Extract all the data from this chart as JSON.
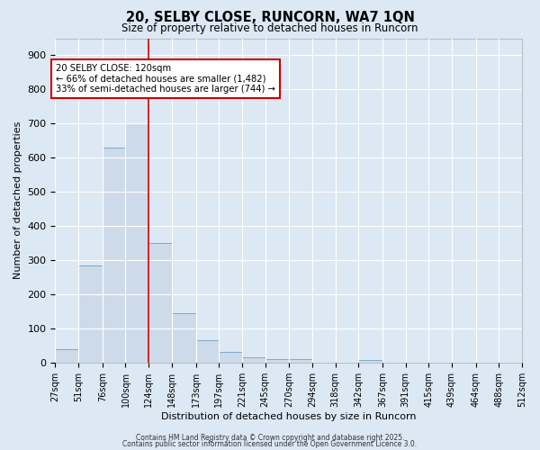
{
  "title": "20, SELBY CLOSE, RUNCORN, WA7 1QN",
  "subtitle": "Size of property relative to detached houses in Runcorn",
  "xlabel": "Distribution of detached houses by size in Runcorn",
  "ylabel": "Number of detached properties",
  "bar_labels": [
    "27sqm",
    "51sqm",
    "76sqm",
    "100sqm",
    "124sqm",
    "148sqm",
    "173sqm",
    "197sqm",
    "221sqm",
    "245sqm",
    "270sqm",
    "294sqm",
    "318sqm",
    "342sqm",
    "367sqm",
    "391sqm",
    "415sqm",
    "439sqm",
    "464sqm",
    "488sqm",
    "512sqm"
  ],
  "bin_edges": [
    27,
    51,
    76,
    100,
    124,
    148,
    173,
    197,
    221,
    245,
    270,
    294,
    318,
    342,
    367,
    391,
    415,
    439,
    464,
    488,
    512
  ],
  "bar_heights": [
    40,
    285,
    630,
    700,
    350,
    145,
    65,
    30,
    15,
    10,
    10,
    0,
    0,
    8,
    0,
    0,
    0,
    0,
    0,
    0
  ],
  "bar_color": "#cddaea",
  "bar_edgecolor": "#7aaaca",
  "vline_x": 124,
  "vline_color": "#cc0000",
  "annotation_title": "20 SELBY CLOSE: 120sqm",
  "annotation_line1": "← 66% of detached houses are smaller (1,482)",
  "annotation_line2": "33% of semi-detached houses are larger (744) →",
  "annotation_box_color": "#cc0000",
  "annotation_bg": "#ffffff",
  "ylim": [
    0,
    950
  ],
  "yticks": [
    0,
    100,
    200,
    300,
    400,
    500,
    600,
    700,
    800,
    900
  ],
  "xlim_min": 27,
  "xlim_max": 512,
  "background_color": "#dce8f4",
  "grid_color": "#ffffff",
  "footer1": "Contains HM Land Registry data © Crown copyright and database right 2025.",
  "footer2": "Contains public sector information licensed under the Open Government Licence 3.0."
}
